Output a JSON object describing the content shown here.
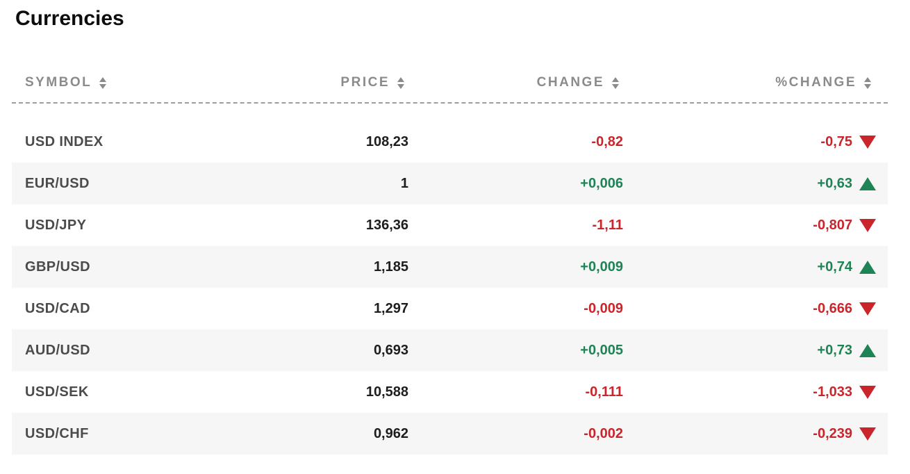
{
  "title": "Currencies",
  "table": {
    "columns": [
      {
        "label": "SYMBOL",
        "sort_icon": "sort-arrows"
      },
      {
        "label": "PRICE",
        "sort_icon": "sort-arrows"
      },
      {
        "label": "CHANGE",
        "sort_icon": "sort-arrows"
      },
      {
        "label": "%CHANGE",
        "sort_icon": "sort-arrows"
      }
    ],
    "rows": [
      {
        "symbol": "USD INDEX",
        "price": "108,23",
        "change": "-0,82",
        "pct_change": "-0,75",
        "direction": "down"
      },
      {
        "symbol": "EUR/USD",
        "price": "1",
        "change": "+0,006",
        "pct_change": "+0,63",
        "direction": "up"
      },
      {
        "symbol": "USD/JPY",
        "price": "136,36",
        "change": "-1,11",
        "pct_change": "-0,807",
        "direction": "down"
      },
      {
        "symbol": "GBP/USD",
        "price": "1,185",
        "change": "+0,009",
        "pct_change": "+0,74",
        "direction": "up"
      },
      {
        "symbol": "USD/CAD",
        "price": "1,297",
        "change": "-0,009",
        "pct_change": "-0,666",
        "direction": "down"
      },
      {
        "symbol": "AUD/USD",
        "price": "0,693",
        "change": "+0,005",
        "pct_change": "+0,73",
        "direction": "up"
      },
      {
        "symbol": "USD/SEK",
        "price": "10,588",
        "change": "-0,111",
        "pct_change": "-1,033",
        "direction": "down"
      },
      {
        "symbol": "USD/CHF",
        "price": "0,962",
        "change": "-0,002",
        "pct_change": "-0,239",
        "direction": "down"
      }
    ]
  },
  "colors": {
    "up": "#1e8455",
    "down": "#cb252c",
    "header_text": "#8b8b8b",
    "row_alt_bg": "#f6f6f6"
  }
}
